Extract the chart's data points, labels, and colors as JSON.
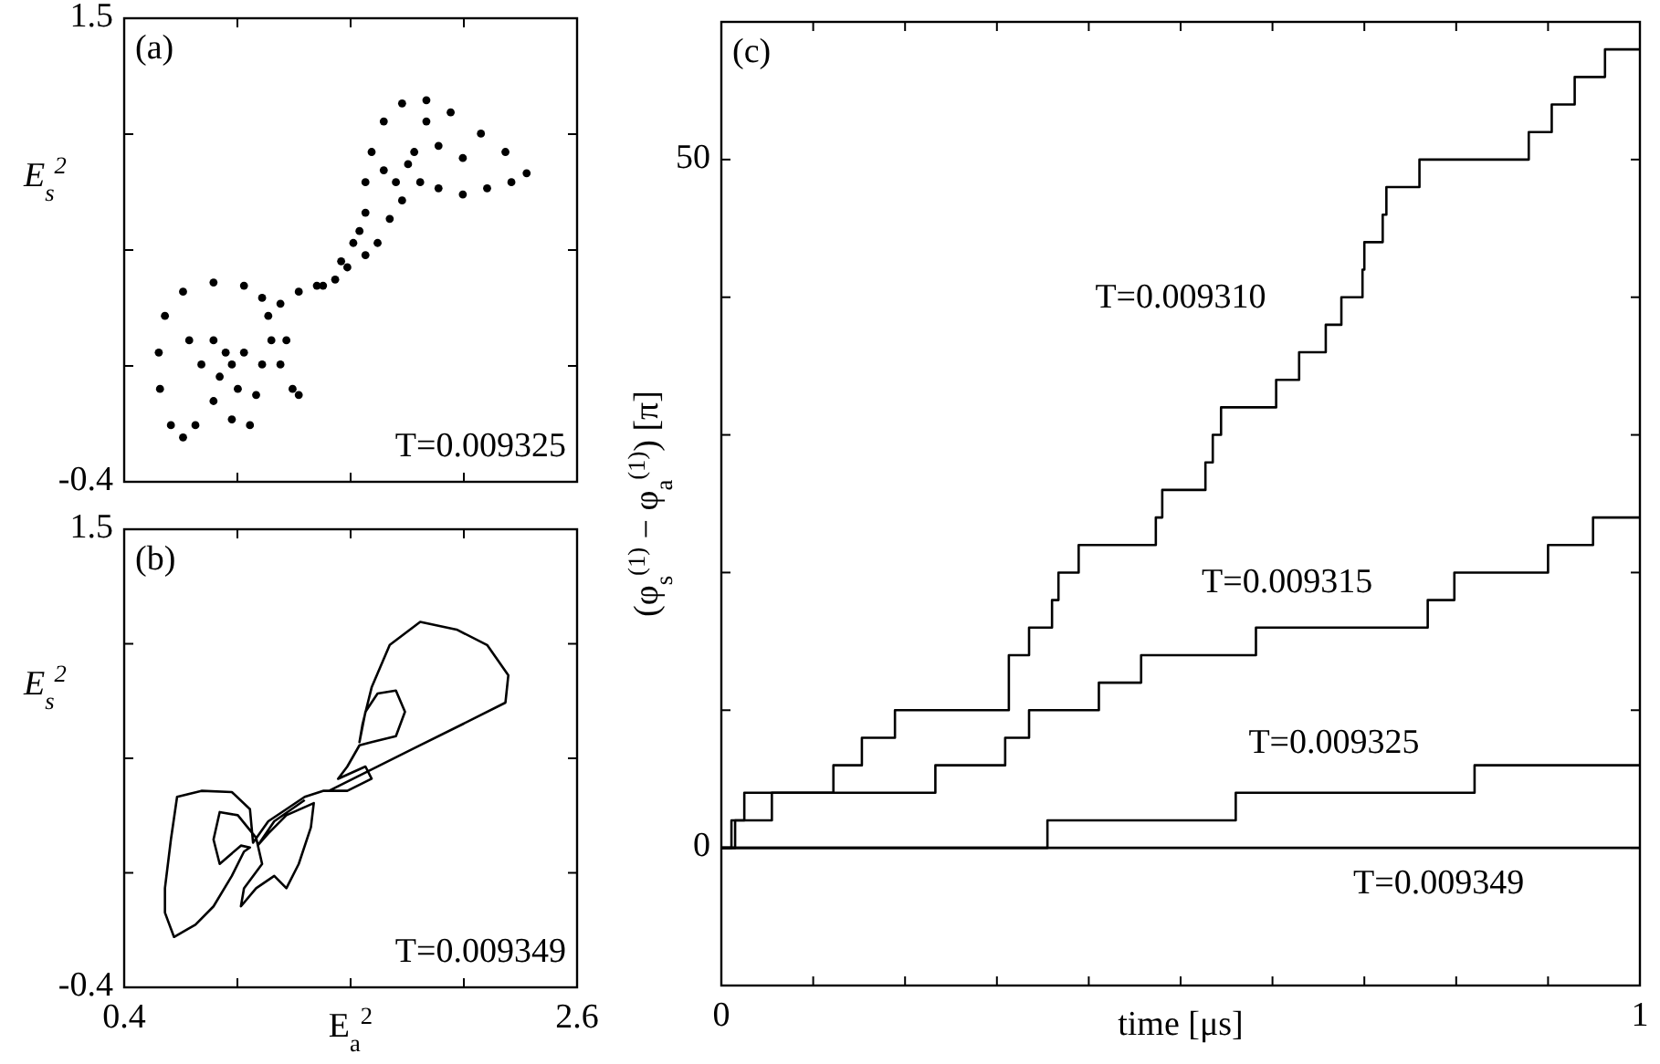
{
  "chart_data": [
    {
      "type": "scatter",
      "ylabel": "E$_{s}$$^{2}$",
      "xlim": [
        0.4,
        2.6
      ],
      "ylim": [
        -0.4,
        1.5
      ],
      "tick_labels": "y",
      "marker": "circle",
      "grid": false,
      "xticks": [
        0.4,
        {
          "value": 0.95,
          "label": null
        },
        {
          "value": 1.5,
          "label": null
        },
        {
          "value": 2.05,
          "label": null
        },
        2.6
      ],
      "yticks": [
        {
          "value": -0.4,
          "label": "-0.4"
        },
        {
          "value": 0.075,
          "label": null
        },
        {
          "value": 0.55,
          "label": null
        },
        {
          "value": 1.025,
          "label": null
        },
        1.5
      ],
      "annotations": [
        "(a)",
        "T=0.009325"
      ],
      "series": [
        {
          "color": "#000000",
          "x": [
            0.568,
            0.598,
            0.686,
            0.834,
            0.982,
            1.07,
            1.1,
            1.115,
            1.07,
            1.041,
            1.011,
            0.923,
            0.834,
            0.746,
            0.686,
            0.627,
            0.574,
            0.834,
            0.893,
            0.923,
            0.864,
            0.775,
            0.716,
            0.982,
            0.952,
            1.159,
            1.218,
            1.248,
            1.188,
            1.159,
            1.248,
            1.336,
            1.425,
            1.484,
            1.513,
            1.543,
            1.454,
            1.366,
            1.572,
            1.572,
            1.602,
            1.661,
            1.75,
            1.868,
            1.986,
            2.133,
            2.252,
            2.355,
            2.281,
            2.163,
            2.045,
            1.927,
            1.838,
            1.75,
            1.69,
            1.631,
            1.72,
            1.809,
            1.927,
            2.045,
            1.868,
            1.572,
            1.661,
            1.779
          ],
          "values": [
            0.13,
            0.28,
            0.379,
            0.417,
            0.404,
            0.354,
            0.28,
            0.18,
            0.081,
            -0.044,
            -0.168,
            -0.144,
            -0.069,
            -0.168,
            -0.218,
            -0.168,
            -0.019,
            0.18,
            0.13,
            0.081,
            0.031,
            0.081,
            0.18,
            0.13,
            -0.019,
            0.081,
            -0.019,
            -0.044,
            0.18,
            0.33,
            0.379,
            0.404,
            0.429,
            0.479,
            0.579,
            0.628,
            0.504,
            0.404,
            0.529,
            0.828,
            0.952,
            1.077,
            1.151,
            1.164,
            1.114,
            1.027,
            0.952,
            0.865,
            0.828,
            0.803,
            0.778,
            0.803,
            0.828,
            0.753,
            0.678,
            0.579,
            0.828,
            0.952,
            0.977,
            0.927,
            1.077,
            0.703,
            0.877,
            0.902
          ]
        }
      ]
    },
    {
      "type": "line",
      "xlabel": "E$_{a}$$^{2}$",
      "ylabel": "E$_{s}$$^{2}$",
      "xlim": [
        0.4,
        2.6
      ],
      "ylim": [
        -0.4,
        1.5
      ],
      "line_style": "solid",
      "grid": false,
      "xticks": [
        0.4,
        {
          "value": 0.95,
          "label": null
        },
        {
          "value": 1.5,
          "label": null
        },
        {
          "value": 2.05,
          "label": null
        },
        2.6
      ],
      "yticks": [
        {
          "value": -0.4,
          "label": "-0.4"
        },
        {
          "value": 0.075,
          "label": null
        },
        {
          "value": 0.55,
          "label": null
        },
        {
          "value": 1.025,
          "label": null
        },
        1.5
      ],
      "annotations": [
        "(b)",
        "T=0.009349"
      ],
      "series": [
        {
          "color": "#000000",
          "x": [
            1.395,
            1.572,
            1.809,
            2.045,
            2.252,
            2.266,
            2.163,
            2.015,
            1.838,
            1.69,
            1.602,
            1.558,
            1.543,
            1.572,
            1.631,
            1.72,
            1.764,
            1.72,
            1.602,
            1.543,
            1.484,
            1.439,
            1.572,
            1.602,
            1.484,
            1.366,
            1.277,
            1.188,
            1.1,
            1.026,
            1.011,
            0.923,
            0.775,
            0.657,
            0.627,
            0.598,
            0.598,
            0.642,
            0.746,
            0.834,
            0.923,
            0.982,
            1.011,
            0.967,
            0.864,
            0.834,
            0.864,
            0.952,
            1.041,
            1.07,
            0.982,
            0.967,
            1.041,
            1.129,
            1.188,
            1.248,
            1.307,
            1.321,
            1.188,
            1.1,
            1.05,
            1.129,
            1.277
          ],
          "values": [
            0.415,
            0.491,
            0.592,
            0.692,
            0.781,
            0.894,
            1.02,
            1.084,
            1.116,
            1.02,
            0.844,
            0.692,
            0.617,
            0.743,
            0.819,
            0.831,
            0.743,
            0.642,
            0.617,
            0.604,
            0.516,
            0.465,
            0.516,
            0.465,
            0.415,
            0.415,
            0.39,
            0.339,
            0.289,
            0.2,
            0.339,
            0.41,
            0.415,
            0.39,
            0.213,
            0.011,
            -0.09,
            -0.191,
            -0.14,
            -0.064,
            0.062,
            0.163,
            0.18,
            0.188,
            0.112,
            0.213,
            0.327,
            0.314,
            0.22,
            0.112,
            0.011,
            -0.064,
            0.011,
            0.062,
            0.011,
            0.112,
            0.264,
            0.364,
            0.314,
            0.238,
            0.19,
            0.289,
            0.377
          ]
        }
      ]
    },
    {
      "type": "step",
      "xlabel": "time [μs]",
      "ylabel": "(φ$_{s}$$^{(1)}$ − φ$_{a}$$^{(1)}$) [π]",
      "xlim": [
        0,
        1
      ],
      "ylim": [
        -10,
        60
      ],
      "line_style": "solid",
      "grid": false,
      "xticks": [
        0,
        {
          "value": 0.1,
          "label": null
        },
        {
          "value": 0.2,
          "label": null
        },
        {
          "value": 0.3,
          "label": null
        },
        {
          "value": 0.4,
          "label": null
        },
        {
          "value": 0.5,
          "label": null
        },
        {
          "value": 0.6,
          "label": null
        },
        {
          "value": 0.7,
          "label": null
        },
        {
          "value": 0.8,
          "label": null
        },
        {
          "value": 0.9,
          "label": null
        },
        1
      ],
      "yticks": [
        0,
        {
          "value": 10,
          "label": null
        },
        {
          "value": 20,
          "label": null
        },
        {
          "value": 30,
          "label": null
        },
        {
          "value": 40,
          "label": null
        },
        50
      ],
      "annotations": [
        "(c)"
      ],
      "series": [
        {
          "name": "T=0.009310",
          "color": "#000000",
          "x": [
            0,
            0.015,
            0.025,
            0.122,
            0.153,
            0.189,
            0.313,
            0.335,
            0.36,
            0.367,
            0.389,
            0.473,
            0.48,
            0.527,
            0.535,
            0.544,
            0.604,
            0.629,
            0.658,
            0.675,
            0.698,
            0.7,
            0.72,
            0.724,
            0.76,
            0.879,
            0.904,
            0.929,
            0.962,
            1
          ],
          "values": [
            0,
            2,
            4,
            6,
            8,
            10,
            14,
            16,
            18,
            20,
            22,
            24,
            26,
            28,
            30,
            32,
            34,
            36,
            38,
            40,
            42,
            44,
            46,
            48,
            50,
            52,
            54,
            56,
            58,
            58
          ]
        },
        {
          "name": "T=0.009315",
          "color": "#000000",
          "x": [
            0,
            0.011,
            0.055,
            0.233,
            0.309,
            0.335,
            0.411,
            0.457,
            0.582,
            0.769,
            0.798,
            0.9,
            0.949,
            1
          ],
          "values": [
            0,
            2,
            4,
            6,
            8,
            10,
            12,
            14,
            16,
            18,
            20,
            22,
            24,
            24
          ]
        },
        {
          "name": "T=0.009325",
          "color": "#000000",
          "x": [
            0,
            0.355,
            0.56,
            0.82,
            1
          ],
          "values": [
            0,
            2,
            4,
            6,
            6
          ]
        },
        {
          "name": "T=0.009349",
          "color": "#000000",
          "x": [
            0,
            1
          ],
          "values": [
            0,
            0
          ]
        }
      ]
    }
  ]
}
